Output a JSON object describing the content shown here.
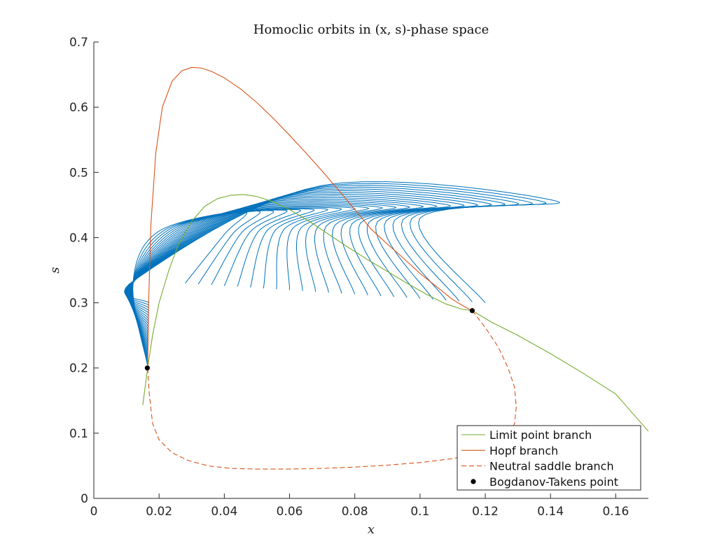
{
  "chart_data": {
    "type": "line",
    "title": "Homoclic orbits in (x, s)-phase space",
    "xlabel": "x",
    "ylabel": "s",
    "xlim": [
      0,
      0.17
    ],
    "ylim": [
      0,
      0.7
    ],
    "xticks": [
      "0",
      "0.02",
      "0.04",
      "0.06",
      "0.08",
      "0.1",
      "0.12",
      "0.14",
      "0.16"
    ],
    "yticks": [
      "0",
      "0.1",
      "0.2",
      "0.3",
      "0.4",
      "0.5",
      "0.6",
      "0.7"
    ],
    "grid": false,
    "legend_position": "bottom-right",
    "legend": [
      "Limit point branch",
      "Hopf branch",
      "Neutral saddle branch",
      "Bogdanov-Takens point"
    ],
    "series": [
      {
        "name": "Limit point branch",
        "color": "#77AC30",
        "style": "solid",
        "x": [
          0.015,
          0.0165,
          0.018,
          0.02,
          0.023,
          0.026,
          0.03,
          0.034,
          0.038,
          0.042,
          0.046,
          0.05,
          0.055,
          0.06,
          0.066,
          0.072,
          0.078,
          0.084,
          0.09,
          0.096,
          0.102,
          0.108,
          0.113,
          0.116,
          0.122,
          0.13,
          0.14,
          0.15,
          0.16,
          0.17
        ],
        "y": [
          0.143,
          0.2,
          0.25,
          0.3,
          0.35,
          0.39,
          0.425,
          0.448,
          0.46,
          0.465,
          0.466,
          0.463,
          0.455,
          0.443,
          0.425,
          0.405,
          0.385,
          0.366,
          0.348,
          0.33,
          0.313,
          0.298,
          0.29,
          0.288,
          0.27,
          0.25,
          0.222,
          0.192,
          0.16,
          0.103
        ]
      },
      {
        "name": "Hopf branch",
        "color": "#D95319",
        "style": "solid",
        "x": [
          0.0165,
          0.0168,
          0.0175,
          0.019,
          0.021,
          0.024,
          0.027,
          0.03,
          0.033,
          0.036,
          0.04,
          0.045,
          0.05,
          0.055,
          0.06,
          0.065,
          0.07,
          0.075,
          0.08,
          0.085,
          0.09,
          0.095,
          0.1,
          0.105,
          0.11,
          0.114,
          0.116
        ],
        "y": [
          0.2,
          0.3,
          0.42,
          0.53,
          0.6,
          0.64,
          0.656,
          0.661,
          0.66,
          0.655,
          0.645,
          0.628,
          0.607,
          0.583,
          0.557,
          0.53,
          0.502,
          0.473,
          0.443,
          0.413,
          0.39,
          0.368,
          0.345,
          0.325,
          0.305,
          0.293,
          0.288
        ]
      },
      {
        "name": "Neutral saddle branch",
        "color": "#D95319",
        "style": "dashed",
        "x": [
          0.116,
          0.12,
          0.124,
          0.127,
          0.129,
          0.1295,
          0.129,
          0.127,
          0.123,
          0.118,
          0.11,
          0.1,
          0.09,
          0.08,
          0.07,
          0.06,
          0.05,
          0.042,
          0.035,
          0.029,
          0.024,
          0.02,
          0.018,
          0.017,
          0.0165
        ],
        "y": [
          0.288,
          0.262,
          0.232,
          0.2,
          0.17,
          0.14,
          0.115,
          0.095,
          0.08,
          0.07,
          0.061,
          0.055,
          0.051,
          0.048,
          0.046,
          0.045,
          0.045,
          0.046,
          0.05,
          0.058,
          0.07,
          0.09,
          0.115,
          0.16,
          0.2
        ]
      }
    ],
    "bt_points": {
      "name": "Bogdanov-Takens point",
      "color": "#000000",
      "x": [
        0.0164,
        0.116
      ],
      "y": [
        0.2,
        0.288
      ]
    },
    "homoclinic_orbits": {
      "color": "#0072BD",
      "count": 24,
      "near_bt_anchor": [
        0.0164,
        0.2
      ],
      "far_bt_anchor": [
        0.116,
        0.288
      ],
      "first_orbit_end": [
        0.046,
        0.44
      ],
      "last_orbit_tip": [
        0.1425,
        0.455
      ]
    }
  }
}
